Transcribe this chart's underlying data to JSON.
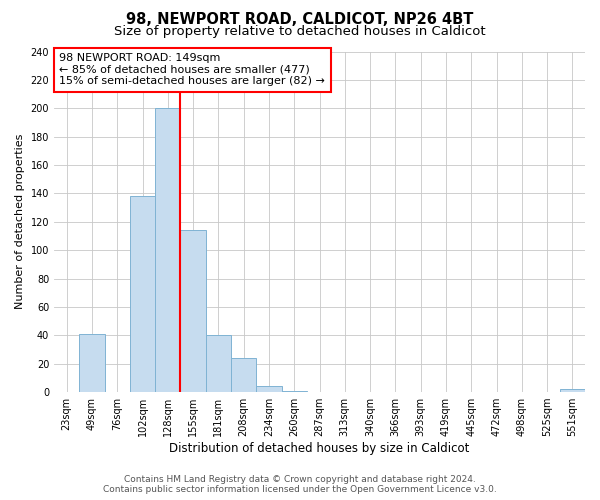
{
  "title": "98, NEWPORT ROAD, CALDICOT, NP26 4BT",
  "subtitle": "Size of property relative to detached houses in Caldicot",
  "xlabel": "Distribution of detached houses by size in Caldicot",
  "ylabel": "Number of detached properties",
  "bar_labels": [
    "23sqm",
    "49sqm",
    "76sqm",
    "102sqm",
    "128sqm",
    "155sqm",
    "181sqm",
    "208sqm",
    "234sqm",
    "260sqm",
    "287sqm",
    "313sqm",
    "340sqm",
    "366sqm",
    "393sqm",
    "419sqm",
    "445sqm",
    "472sqm",
    "498sqm",
    "525sqm",
    "551sqm"
  ],
  "bar_values": [
    0,
    41,
    0,
    138,
    200,
    114,
    40,
    24,
    4,
    1,
    0,
    0,
    0,
    0,
    0,
    0,
    0,
    0,
    0,
    0,
    2
  ],
  "bar_color": "#c6dcef",
  "bar_edge_color": "#7fb3d3",
  "red_line_x": 4,
  "annotation_line1": "98 NEWPORT ROAD: 149sqm",
  "annotation_line2": "← 85% of detached houses are smaller (477)",
  "annotation_line3": "15% of semi-detached houses are larger (82) →",
  "annotation_box_edge_color": "red",
  "ylim": [
    0,
    240
  ],
  "yticks": [
    0,
    20,
    40,
    60,
    80,
    100,
    120,
    140,
    160,
    180,
    200,
    220,
    240
  ],
  "footer_line1": "Contains HM Land Registry data © Crown copyright and database right 2024.",
  "footer_line2": "Contains public sector information licensed under the Open Government Licence v3.0.",
  "background_color": "#ffffff",
  "grid_color": "#c8c8c8",
  "title_fontsize": 10.5,
  "subtitle_fontsize": 9.5,
  "xlabel_fontsize": 8.5,
  "ylabel_fontsize": 8,
  "tick_fontsize": 7,
  "annotation_fontsize": 8,
  "footer_fontsize": 6.5
}
